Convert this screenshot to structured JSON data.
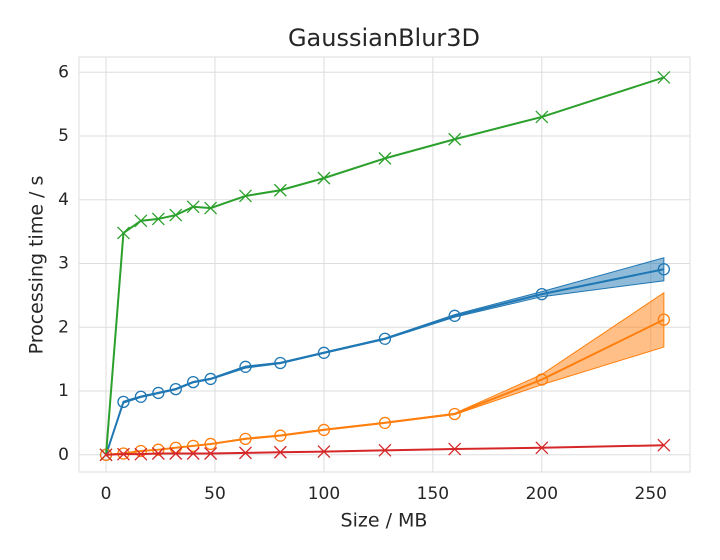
{
  "chart_data": {
    "type": "line",
    "title": "GaussianBlur3D",
    "x_label": "Size / MB",
    "y_label": "Processing time / s",
    "x": [
      0,
      8,
      16,
      24,
      32,
      40,
      48,
      64,
      80,
      100,
      128,
      160,
      200,
      256
    ],
    "series": [
      {
        "color": "#1f77b4",
        "marker": "o",
        "values": [
          0,
          0.83,
          0.91,
          0.97,
          1.03,
          1.14,
          1.19,
          1.38,
          1.44,
          1.6,
          1.82,
          2.18,
          2.52,
          2.91
        ],
        "lower": [
          0,
          0.81,
          0.9,
          0.96,
          1.02,
          1.13,
          1.18,
          1.36,
          1.43,
          1.59,
          1.81,
          2.16,
          2.48,
          2.73
        ],
        "upper": [
          0,
          0.84,
          0.92,
          0.98,
          1.04,
          1.15,
          1.2,
          1.39,
          1.45,
          1.61,
          1.83,
          2.2,
          2.56,
          3.09
        ]
      },
      {
        "color": "#ff7f0e",
        "marker": "o",
        "values": [
          0,
          0.02,
          0.06,
          0.08,
          0.11,
          0.14,
          0.17,
          0.25,
          0.3,
          0.39,
          0.5,
          0.64,
          1.18,
          2.12
        ],
        "lower": [
          0,
          0.02,
          0.06,
          0.08,
          0.11,
          0.14,
          0.17,
          0.25,
          0.3,
          0.39,
          0.5,
          0.63,
          1.1,
          1.69
        ],
        "upper": [
          0,
          0.03,
          0.06,
          0.08,
          0.11,
          0.14,
          0.17,
          0.26,
          0.31,
          0.4,
          0.51,
          0.65,
          1.26,
          2.54
        ]
      },
      {
        "color": "#2ca02c",
        "marker": "x",
        "values": [
          0,
          3.48,
          3.67,
          3.7,
          3.76,
          3.89,
          3.87,
          4.06,
          4.15,
          4.34,
          4.65,
          4.95,
          5.3,
          5.92
        ]
      },
      {
        "color": "#d62728",
        "marker": "x",
        "values": [
          0,
          0.01,
          0.01,
          0.02,
          0.02,
          0.02,
          0.02,
          0.03,
          0.04,
          0.05,
          0.07,
          0.09,
          0.11,
          0.15
        ]
      }
    ],
    "xlim": [
      -12.4,
      268
    ],
    "ylim": [
      -0.27,
      6.24
    ],
    "xticks": [
      0,
      50,
      100,
      150,
      200,
      250
    ],
    "yticks": [
      0,
      1,
      2,
      3,
      4,
      5,
      6
    ],
    "grid": true
  }
}
